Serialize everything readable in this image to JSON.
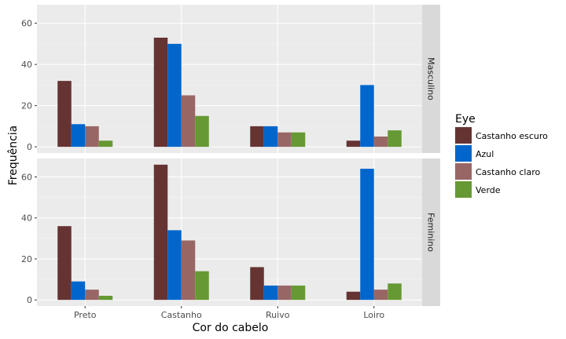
{
  "chart_data": {
    "type": "bar",
    "xlabel": "Cor do cabelo",
    "ylabel": "Frequência",
    "categories": [
      "Preto",
      "Castanho",
      "Ruivo",
      "Loiro"
    ],
    "ylim": [
      -3,
      69
    ],
    "yticks": [
      0,
      20,
      40,
      60
    ],
    "grid": true,
    "legend": {
      "title": "Eye",
      "position": "right"
    },
    "series_colors": [
      "#663333",
      "#0066CC",
      "#996666",
      "#669933"
    ],
    "panels": [
      {
        "strip": "Masculino",
        "series": [
          {
            "name": "Castanho escuro",
            "values": [
              32,
              53,
              10,
              3
            ]
          },
          {
            "name": "Azul",
            "values": [
              11,
              50,
              10,
              30
            ]
          },
          {
            "name": "Castanho claro",
            "values": [
              10,
              25,
              7,
              5
            ]
          },
          {
            "name": "Verde",
            "values": [
              3,
              15,
              7,
              8
            ]
          }
        ]
      },
      {
        "strip": "Feminino",
        "series": [
          {
            "name": "Castanho escuro",
            "values": [
              36,
              66,
              16,
              4
            ]
          },
          {
            "name": "Azul",
            "values": [
              9,
              34,
              7,
              64
            ]
          },
          {
            "name": "Castanho claro",
            "values": [
              5,
              29,
              7,
              5
            ]
          },
          {
            "name": "Verde",
            "values": [
              2,
              14,
              7,
              8
            ]
          }
        ]
      }
    ]
  }
}
